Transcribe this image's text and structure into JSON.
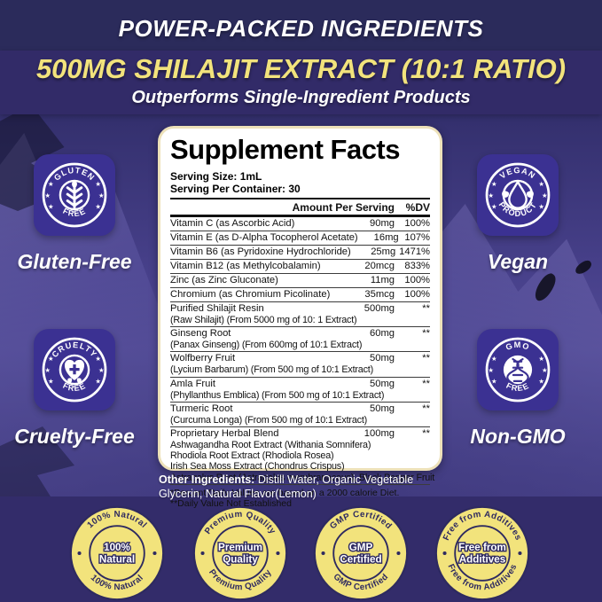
{
  "header": {
    "kicker": "POWER-PACKED INGREDIENTS",
    "headline": "500MG SHILAJIT EXTRACT (10:1 RATIO)",
    "subheadline": "Outperforms Single-Ingredient Products"
  },
  "panel": {
    "title": "Supplement Facts",
    "serving_size": "Serving Size: 1mL",
    "servings_per_container": "Serving Per Container: 30",
    "columns": {
      "amount": "Amount Per Serving",
      "dv": "%DV"
    },
    "rows": [
      {
        "name": "Vitamin C (as Ascorbic Acid)",
        "amount": "90mg",
        "dv": "100%"
      },
      {
        "name": "Vitamin E (as D-Alpha Tocopherol Acetate)",
        "amount": "16mg",
        "dv": "107%"
      },
      {
        "name": "Vitamin B6 (as Pyridoxine Hydrochloride)",
        "amount": "25mg",
        "dv": "1471%"
      },
      {
        "name": "Vitamin B12 (as Methylcobalamin)",
        "amount": "20mcg",
        "dv": "833%"
      },
      {
        "name": "Zinc (as Zinc Gluconate)",
        "amount": "11mg",
        "dv": "100%"
      },
      {
        "name": "Chromium (as Chromium Picolinate)",
        "amount": "35mcg",
        "dv": "100%"
      },
      {
        "name": "Purified Shilajit Resin",
        "amount": "500mg",
        "dv": "**",
        "details": [
          "(Raw Shilajit) (From 5000 mg of 10: 1 Extract)"
        ]
      },
      {
        "name": "Ginseng Root",
        "amount": "60mg",
        "dv": "**",
        "details": [
          "(Panax Ginseng) (From 600mg of 10:1 Extract)"
        ]
      },
      {
        "name": "Wolfberry Fruit",
        "amount": "50mg",
        "dv": "**",
        "details": [
          "(Lycium Barbarum) (From 500 mg of 10:1 Extract)"
        ]
      },
      {
        "name": "Amla Fruit",
        "amount": "50mg",
        "dv": "**",
        "details": [
          "(Phyllanthus Emblica) (From 500 mg of 10:1 Extract)"
        ]
      },
      {
        "name": "Turmeric Root",
        "amount": "50mg",
        "dv": "**",
        "details": [
          "(Curcuma Longa) (From 500 mg of 10:1 Extract)"
        ]
      },
      {
        "name": "Proprietary Herbal Blend",
        "amount": "100mg",
        "dv": "**",
        "details": [
          "Ashwagandha Root Extract (Withania Somnifera)",
          "Rhodiola Root Extract (Rhodiola Rosea)",
          "Irish Sea Moss Extract (Chondrus Crispus)",
          "Astragalus Root (Astragalus membranaceus), Black Pepper Fruit"
        ]
      }
    ],
    "footnotes": [
      "*Percent Daily Values are based on a 2000 calorie Diet.",
      "**Daily Value Not Established"
    ]
  },
  "other_ingredients": {
    "label": "Other Ingredients:",
    "text": "Distill Water, Organic Vegetable Glycerin, Natural Flavor(Lemon)"
  },
  "side_badges": [
    {
      "id": "gluten-free",
      "top_text": "GLUTEN",
      "bottom_text": "FREE",
      "icon": "wheat-icon",
      "label": "Gluten-Free"
    },
    {
      "id": "vegan",
      "top_text": "VEGAN",
      "bottom_text": "PRODUCT",
      "icon": "leaf-drop-icon",
      "label": "Vegan"
    },
    {
      "id": "cruelty-free",
      "top_text": "CRUELTY",
      "bottom_text": "FREE",
      "icon": "heart-icon",
      "label": "Cruelty-Free"
    },
    {
      "id": "non-gmo",
      "top_text": "GMO",
      "bottom_text": "FREE",
      "icon": "dna-icon",
      "label": "Non-GMO"
    }
  ],
  "seals": [
    {
      "id": "100-natural",
      "ring_text": "100% Natural",
      "center_lines": [
        "100%",
        "Natural"
      ]
    },
    {
      "id": "premium-quality",
      "ring_text": "Premium Quality",
      "center_lines": [
        "Premium",
        "Quality"
      ]
    },
    {
      "id": "gmp-certified",
      "ring_text": "GMP Certified",
      "center_lines": [
        "GMP",
        "Certified"
      ]
    },
    {
      "id": "free-from-additives",
      "ring_text": "Free from Additives",
      "center_lines": [
        "Free from",
        "Additives"
      ]
    }
  ],
  "colors": {
    "background": "#3d3779",
    "top_band": "#2b2b5b",
    "banner_band": "#322b68",
    "bottom_band": "#332c6a",
    "accent_yellow": "#f2e37c",
    "badge_purple": "#3b3192",
    "seal_navy": "#2e2a60",
    "panel_border": "#ede1b9",
    "white": "#ffffff"
  }
}
